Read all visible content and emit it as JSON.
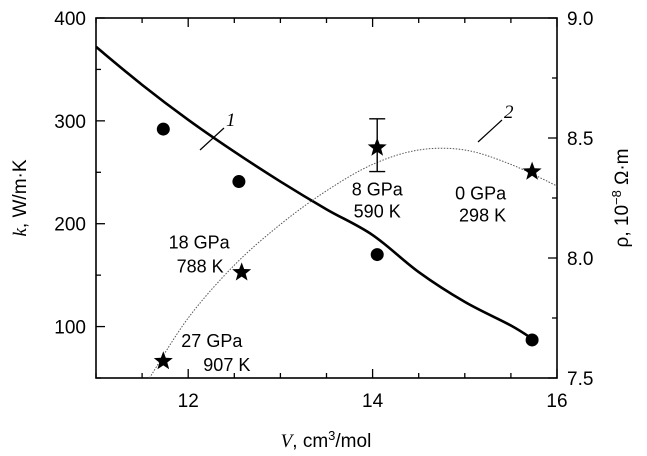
{
  "chart_data": {
    "type": "scatter",
    "xlabel": {
      "symbol": "V",
      "unit_prefix": ", cm",
      "unit_sup": "3",
      "unit_suffix": "/mol"
    },
    "ylabel_left": {
      "symbol": "k",
      "unit": ", W/m·K"
    },
    "ylabel_right": {
      "symbol": "ρ",
      "unit_prefix": ", 10",
      "unit_sup": "−8",
      "unit_suffix": " Ω·m"
    },
    "xlim": [
      11,
      16
    ],
    "ylim_left": [
      50,
      400
    ],
    "ylim_right": [
      7.5,
      9.0
    ],
    "x_ticks": [
      "12",
      "14",
      "16"
    ],
    "y_ticks_left": [
      "100",
      "200",
      "300",
      "400"
    ],
    "y_ticks_right": [
      "7.5",
      "8.0",
      "8.5",
      "9.0"
    ],
    "grid": false,
    "series": [
      {
        "name": "1",
        "axis": "left",
        "marker": "circle",
        "points": [
          {
            "x": 11.73,
            "y": 292
          },
          {
            "x": 12.55,
            "y": 241
          },
          {
            "x": 14.05,
            "y": 170
          },
          {
            "x": 15.73,
            "y": 87
          }
        ],
        "fit": [
          {
            "x": 11.0,
            "y": 372
          },
          {
            "x": 11.5,
            "y": 335
          },
          {
            "x": 12.0,
            "y": 301
          },
          {
            "x": 12.5,
            "y": 270
          },
          {
            "x": 13.0,
            "y": 241
          },
          {
            "x": 13.5,
            "y": 214
          },
          {
            "x": 14.0,
            "y": 189
          },
          {
            "x": 14.5,
            "y": 153
          },
          {
            "x": 15.0,
            "y": 124
          },
          {
            "x": 15.5,
            "y": 101
          },
          {
            "x": 15.75,
            "y": 87
          }
        ]
      },
      {
        "name": "2",
        "axis": "right",
        "marker": "star",
        "points": [
          {
            "x": 11.73,
            "y": 7.57,
            "label_line1": "27 GPa",
            "label_line2": "907 K"
          },
          {
            "x": 12.58,
            "y": 7.94,
            "label_line1": "18 GPa",
            "label_line2": "788 K"
          },
          {
            "x": 14.05,
            "y": 8.46,
            "label_line1": "8 GPa",
            "label_line2": "590 K"
          },
          {
            "x": 15.73,
            "y": 8.36,
            "label_line1": "0 GPa",
            "label_line2": "298 K"
          }
        ],
        "error_bar": {
          "x": 14.05,
          "low": 8.36,
          "high": 8.58
        },
        "fit": [
          {
            "x": 11.58,
            "y": 7.5
          },
          {
            "x": 12.0,
            "y": 7.75
          },
          {
            "x": 12.5,
            "y": 7.97
          },
          {
            "x": 13.0,
            "y": 8.14
          },
          {
            "x": 13.5,
            "y": 8.28
          },
          {
            "x": 14.0,
            "y": 8.39
          },
          {
            "x": 14.5,
            "y": 8.45
          },
          {
            "x": 15.0,
            "y": 8.45
          },
          {
            "x": 15.5,
            "y": 8.39
          },
          {
            "x": 16.0,
            "y": 8.3
          }
        ]
      }
    ]
  }
}
